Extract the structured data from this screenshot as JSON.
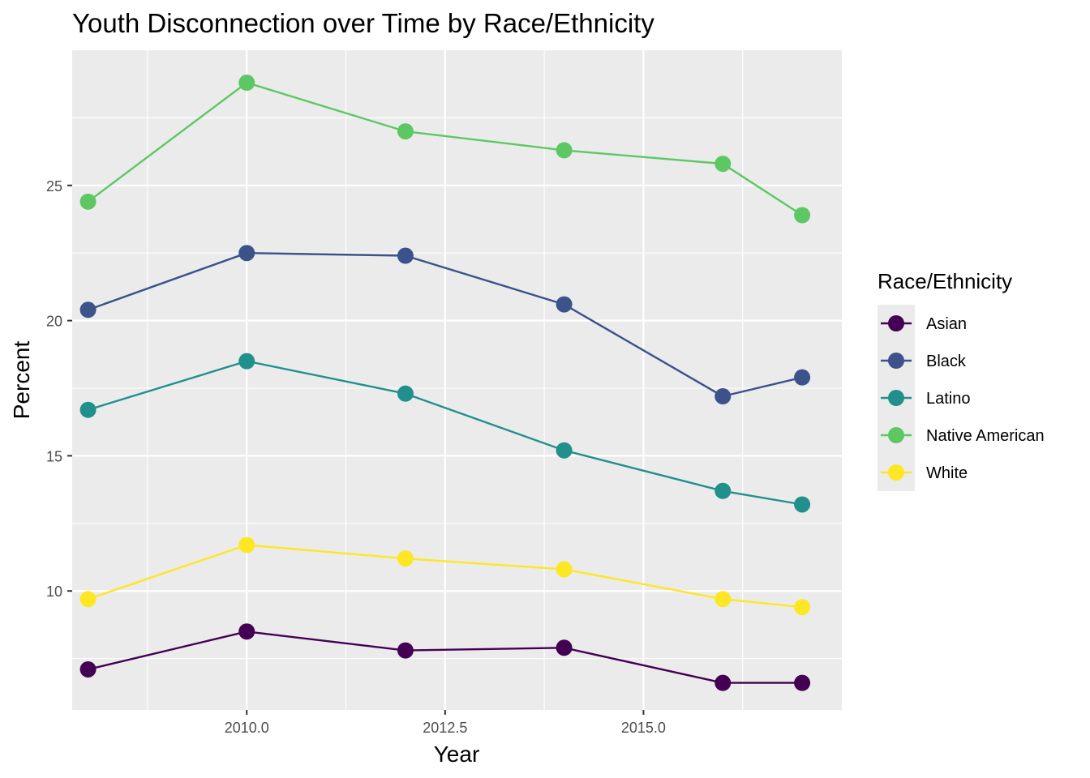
{
  "chart_data": {
    "type": "line",
    "title": "Youth Disconnection over Time by Race/Ethnicity",
    "xlabel": "Year",
    "ylabel": "Percent",
    "x_ticks": [
      "2010.0",
      "2012.5",
      "2015.0"
    ],
    "y_ticks": [
      "10",
      "15",
      "20",
      "25"
    ],
    "xlim": [
      2007.8,
      2017.5
    ],
    "ylim": [
      5.6,
      30
    ],
    "x": [
      2008,
      2010,
      2012,
      2014,
      2016,
      2017
    ],
    "grid": true,
    "legend_title": "Race/Ethnicity",
    "legend_position": "right",
    "series": [
      {
        "name": "Asian",
        "color": "#440154",
        "values": [
          7.1,
          8.5,
          7.8,
          7.9,
          6.6,
          6.6
        ]
      },
      {
        "name": "Black",
        "color": "#3B528B",
        "values": [
          20.4,
          22.5,
          22.4,
          20.6,
          17.2,
          17.9
        ]
      },
      {
        "name": "Latino",
        "color": "#21908C",
        "values": [
          16.7,
          18.5,
          17.3,
          15.2,
          13.7,
          13.2
        ]
      },
      {
        "name": "Native American",
        "color": "#5DC863",
        "values": [
          24.4,
          28.8,
          27.0,
          26.3,
          25.8,
          23.9
        ]
      },
      {
        "name": "White",
        "color": "#FDE725",
        "values": [
          9.7,
          11.7,
          11.2,
          10.8,
          9.7,
          9.4
        ]
      }
    ]
  }
}
